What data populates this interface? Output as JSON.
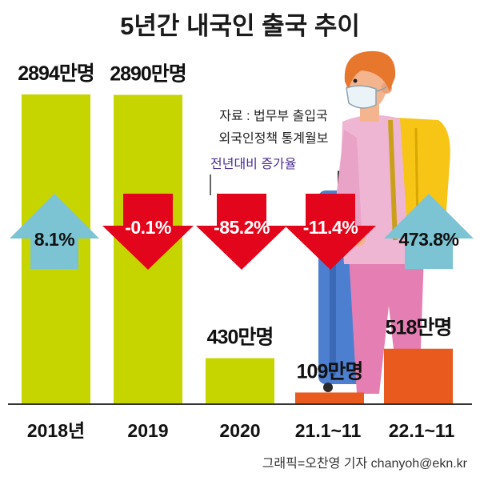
{
  "source": [
    "자료 : 법무부 출입국",
    "외국인정책 통계월보"
  ],
  "rate_label": "전년대비 증가율",
  "credit": "그래픽=오찬영 기자 chanyoh@ekn.kr",
  "colors": {
    "bar_lime": "#c6d400",
    "bar_orange": "#e85a1e",
    "up_arrow": "#7cc4d4",
    "down_arrow": "#e3051b",
    "rate_text": "#4b2f95"
  },
  "chart_data": {
    "type": "bar",
    "title": "5년간 내국인 출국 추이",
    "categories": [
      "2018년",
      "2019",
      "2020",
      "21.1~11",
      "22.1~11"
    ],
    "values": [
      2894,
      2890,
      430,
      109,
      518
    ],
    "value_labels": [
      "2894만명",
      "2890만명",
      "430만명",
      "109만명",
      "518만명"
    ],
    "change_pct": [
      8.1,
      -0.1,
      -85.2,
      -11.4,
      473.8
    ],
    "change_labels": [
      "8.1%",
      "-0.1%",
      "-85.2%",
      "-11.4%",
      "473.8%"
    ],
    "bar_colors": [
      "#c6d400",
      "#c6d400",
      "#c6d400",
      "#e85a1e",
      "#e85a1e"
    ],
    "xlabel": "",
    "ylabel": "",
    "grid": false
  }
}
